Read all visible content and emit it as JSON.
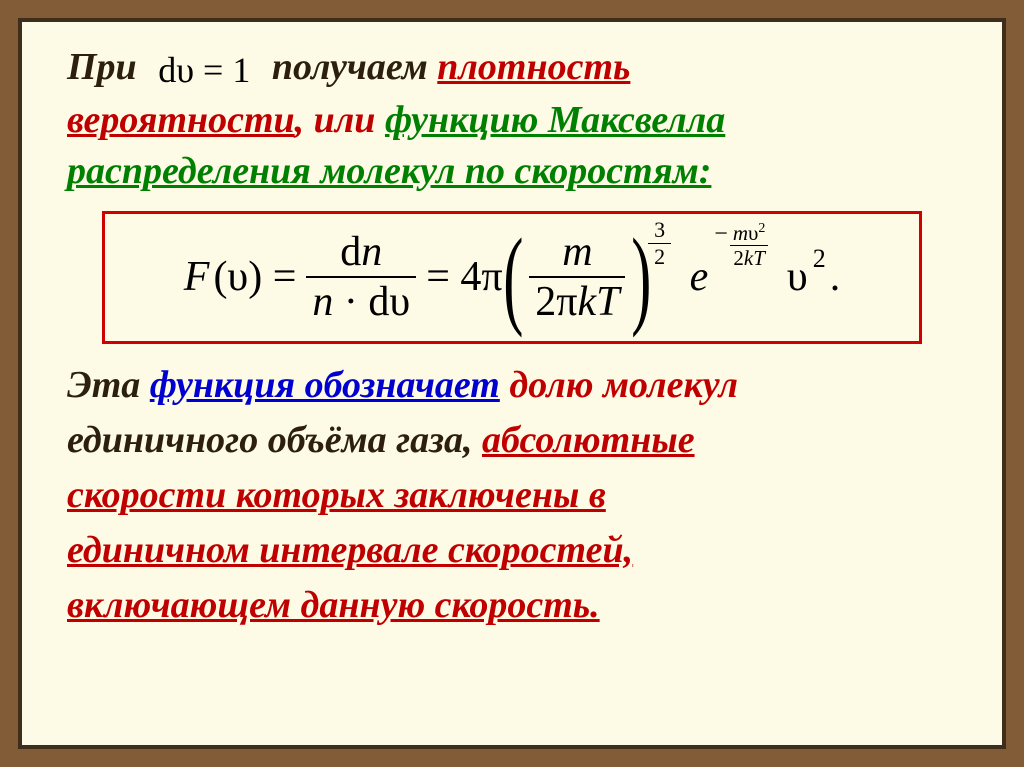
{
  "colors": {
    "outer_bg": "#825c36",
    "inner_bg": "#fdfae6",
    "frame_border": "#3d2d1a",
    "formula_border": "#d00000",
    "text": "#2d1f10",
    "red": "#c00000",
    "green": "#008000",
    "blue": "#0000d0"
  },
  "typography": {
    "body_fontsize_pt": 28,
    "formula_fontsize_pt": 32,
    "italic": true,
    "bold": true,
    "family": "Times, Georgia, serif"
  },
  "p1": {
    "t1": "При ",
    "formula": "dυ = 1",
    "t2": " получаем ",
    "red1": "плотность",
    "red2": "вероятности",
    "t3": ", или ",
    "green": "функцию Максвелла",
    "under": "распределения  молекул  по скоростям:"
  },
  "formula": {
    "lhs": "F",
    "lhs_arg": "(υ) = ",
    "frac1_num": "d",
    "frac1_num_n": "n",
    "frac1_den_n": "n",
    "frac1_den_dot": " · d",
    "frac1_den_u": "υ",
    "eq4pi": " = 4π",
    "lparen": "(",
    "frac2_num": "m",
    "frac2_den": "2π",
    "frac2_den_k": "k",
    "frac2_den_T": "T",
    "rparen": ")",
    "pow_num": "3",
    "pow_den": "2",
    "e": "e",
    "exp_minus": "−",
    "exp_num_m": "m",
    "exp_num_u": "υ",
    "exp_num_sq": "2",
    "exp_den_2k": "2",
    "exp_den_k": "k",
    "exp_den_T": "T",
    "tail_u": "υ",
    "tail_sq": "2",
    "period": "."
  },
  "p2": {
    "t1": "Эта ",
    "blue": "функция обозначает",
    "t2": " ",
    "red_a": "долю молекул",
    "line2": "единичного объёма газа, ",
    "red_b": "абсолютные",
    "red_c1": "скорости  которых  заключены  в",
    "red_c2": "единичном  интервале  скоростей,",
    "red_c3": "включающем  данную  скорость."
  }
}
